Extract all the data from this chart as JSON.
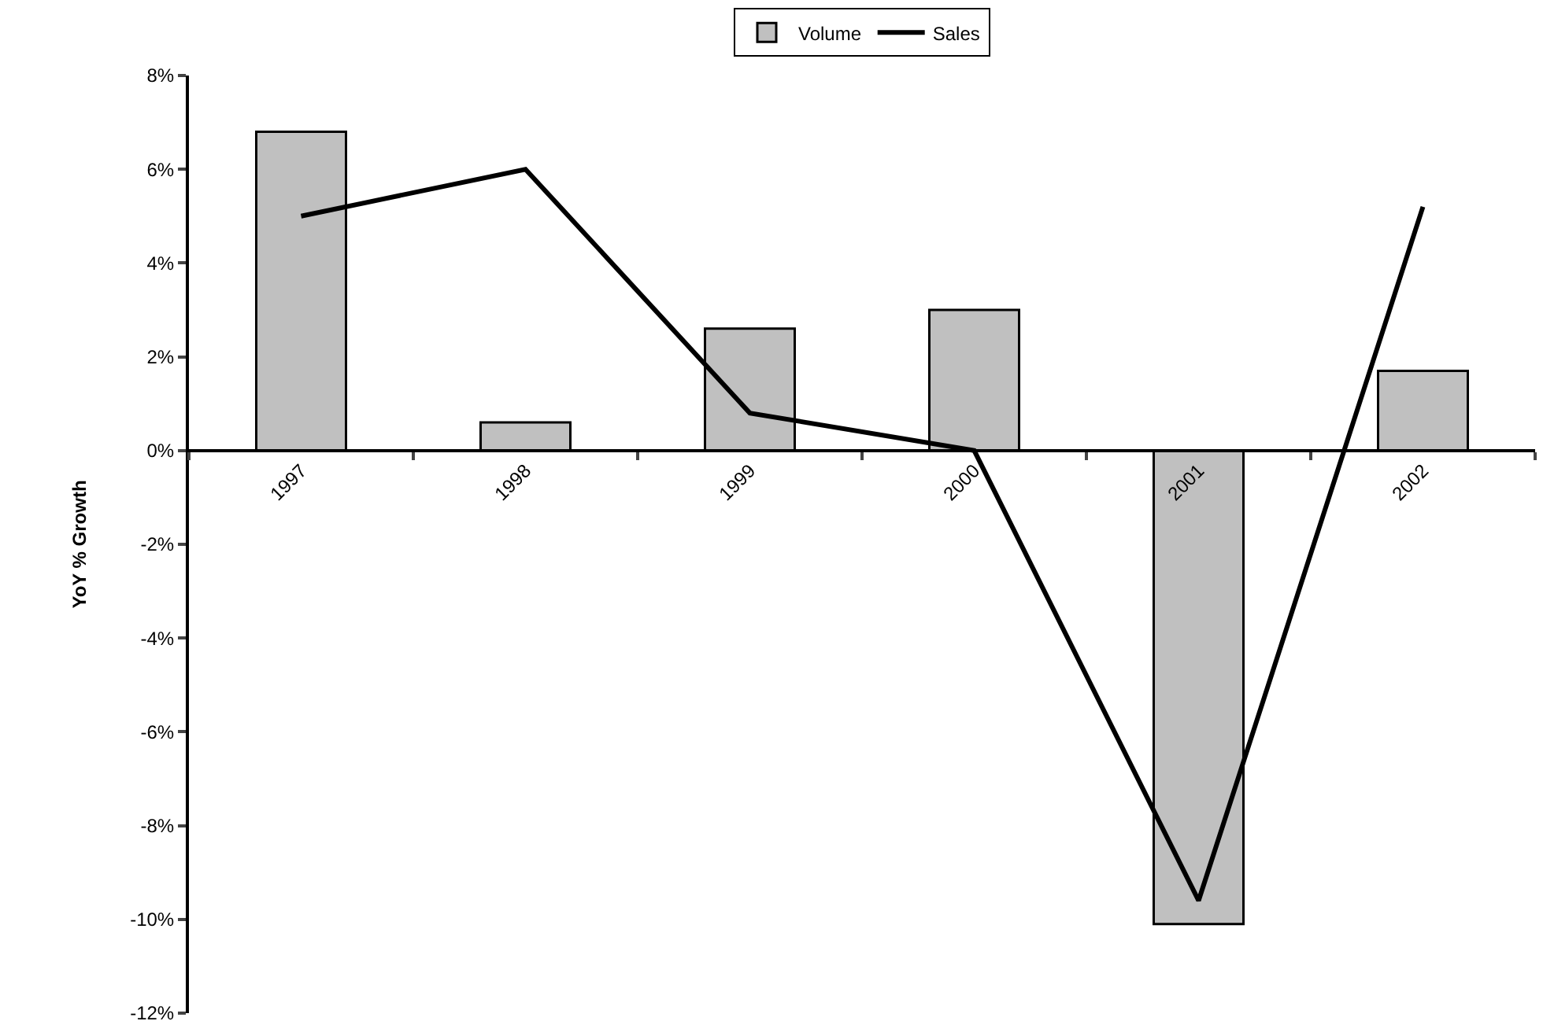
{
  "chart_data": {
    "type": "bar",
    "ylabel": "YoY % Growth",
    "categories": [
      "1997",
      "1998",
      "1999",
      "2000",
      "2001",
      "2002"
    ],
    "series": [
      {
        "name": "Volume",
        "color": "#c0c0c0",
        "values": [
          6.8,
          0.6,
          2.6,
          3.0,
          -10.1,
          1.7
        ]
      },
      {
        "name": "Sales",
        "type": "line",
        "color": "#000000",
        "marker": "none",
        "line_style": "solid",
        "values": [
          5.0,
          6.0,
          0.8,
          0.0,
          -9.6,
          5.2
        ]
      }
    ],
    "ylim": [
      -12,
      8
    ],
    "yticks": [
      {
        "value": -12,
        "label": "-12%"
      },
      {
        "value": -10,
        "label": "-10%"
      },
      {
        "value": -8,
        "label": "-8%"
      },
      {
        "value": -6,
        "label": "-6%"
      },
      {
        "value": -4,
        "label": "-4%"
      },
      {
        "value": -2,
        "label": "-2%"
      },
      {
        "value": 0,
        "label": "0%"
      },
      {
        "value": 2,
        "label": "2%"
      },
      {
        "value": 4,
        "label": "4%"
      },
      {
        "value": 6,
        "label": "6%"
      },
      {
        "value": 8,
        "label": "8%"
      }
    ],
    "legend": "top"
  }
}
